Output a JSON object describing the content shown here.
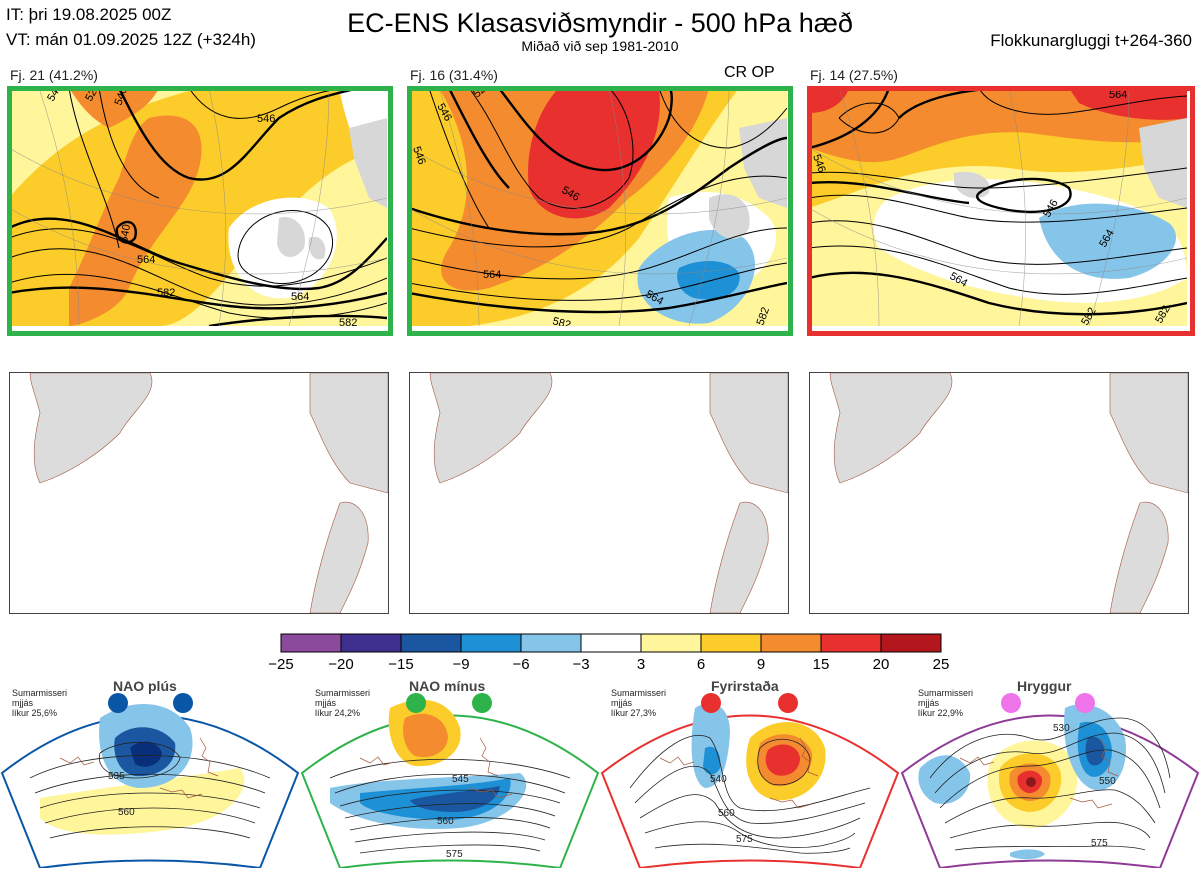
{
  "header": {
    "it": "IT: þri 19.08.2025 00Z",
    "vt": "VT: mán 01.09.2025 12Z  (+324h)",
    "title": "EC-ENS Klasasviðsmyndir - 500 hPa hæð",
    "subtitle": "Miðað við sep 1981-2010",
    "window": "Flokkunargluggi t+264-360"
  },
  "clusters": [
    {
      "label": "Fj. 21 (41.2%)",
      "border_color": "#2eb34a",
      "contours": [
        "546",
        "564",
        "582",
        "564",
        "582",
        "546",
        "528",
        "540",
        "540"
      ]
    },
    {
      "label": "Fj. 16 (31.4%)",
      "border_color": "#2eb34a",
      "tag": "CR OP",
      "contours": [
        "546",
        "564",
        "582",
        "564",
        "546",
        "528",
        "546",
        "582"
      ]
    },
    {
      "label": "Fj. 14 (27.5%)",
      "border_color": "#e8302e",
      "contours": [
        "546",
        "564",
        "582",
        "546",
        "564",
        "564",
        "582"
      ]
    }
  ],
  "colorbar": {
    "ticks": [
      "−25",
      "−20",
      "−15",
      "−9",
      "−6",
      "−3",
      "3",
      "6",
      "9",
      "15",
      "20",
      "25"
    ],
    "colors": [
      "#8b4a9c",
      "#3f2f8f",
      "#1b57a0",
      "#1e90d6",
      "#86c5ea",
      "#ffffff",
      "#fff59a",
      "#fccd2a",
      "#f48c2f",
      "#e8302e",
      "#b3171d"
    ]
  },
  "regimes": [
    {
      "name": "NAO plús",
      "season": "Sumarmisseri",
      "avg": "mjjás",
      "prob": "líkur 25,6%",
      "color": "#0a56a6",
      "labels": [
        "535",
        "560"
      ]
    },
    {
      "name": "NAO mínus",
      "season": "Sumarmisseri",
      "avg": "mjjás",
      "prob": "líkur 24,2%",
      "color": "#2eb34a",
      "labels": [
        "545",
        "560",
        "575"
      ]
    },
    {
      "name": "Fyrirstaða",
      "season": "Sumarmisseri",
      "avg": "mjjás",
      "prob": "líkur 27,3%",
      "color": "#e8302e",
      "labels": [
        "540",
        "560",
        "575"
      ]
    },
    {
      "name": "Hryggur",
      "season": "Sumarmisseri",
      "avg": "mjjás",
      "prob": "líkur 22,9%",
      "color": "#8e3a96",
      "labels": [
        "530",
        "550",
        "575"
      ]
    }
  ]
}
